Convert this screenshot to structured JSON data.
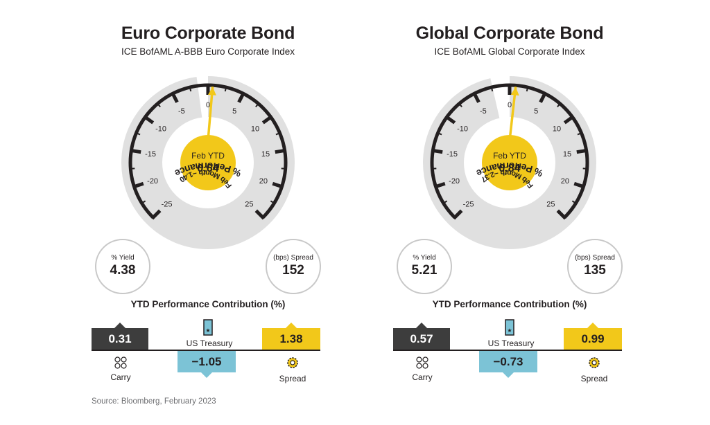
{
  "colors": {
    "dark": "#3d3d3d",
    "yellow": "#f2c81a",
    "blue": "#7cc3d6",
    "grey": "#e0e0e0"
  },
  "panels": [
    {
      "title": "Euro Corporate Bond",
      "subtitle": "ICE BofAML A-BBB Euro Corporate Index",
      "gauge_label": "% Performance",
      "center_label": "Feb YTD",
      "center_value": "0.64",
      "month_label": "Feb Month −1.40",
      "yield_label": "% Yield",
      "yield_value": "4.38",
      "spread_label": "(bps) Spread",
      "spread_value": "152",
      "contrib_title": "YTD Performance Contribution (%)",
      "carry_value": "0.31",
      "carry_label": "Carry",
      "treasury_value": "−1.05",
      "treasury_label": "US Treasury",
      "spread_contrib_value": "1.38",
      "spread_contrib_label": "Spread"
    },
    {
      "title": "Global Corporate Bond",
      "subtitle": "ICE BofAML Global Corporate Index",
      "gauge_label": "% Performance",
      "center_label": "Feb YTD",
      "center_value": "0.84",
      "month_label": "Feb Month −2.37",
      "yield_label": "% Yield",
      "yield_value": "5.21",
      "spread_label": "(bps) Spread",
      "spread_value": "135",
      "contrib_title": "YTD Performance Contribution (%)",
      "carry_value": "0.57",
      "carry_label": "Carry",
      "treasury_value": "−0.73",
      "treasury_label": "US Treasury",
      "spread_contrib_value": "0.99",
      "spread_contrib_label": "Spread"
    }
  ],
  "source": "Source: Bloomberg, February 2023",
  "chart_data": [
    {
      "type": "gauge",
      "title": "Euro Corporate Bond",
      "axis_label": "% Performance",
      "range": [
        -25,
        25
      ],
      "ticks": [
        -25,
        -20,
        -15,
        -10,
        -5,
        0,
        5,
        10,
        15,
        20,
        25
      ],
      "feb_ytd": 0.64,
      "feb_month": -1.4,
      "contribution": {
        "categories": [
          "Carry",
          "US Treasury",
          "Spread"
        ],
        "values": [
          0.31,
          -1.05,
          1.38
        ]
      }
    },
    {
      "type": "gauge",
      "title": "Global Corporate Bond",
      "axis_label": "% Performance",
      "range": [
        -25,
        25
      ],
      "ticks": [
        -25,
        -20,
        -15,
        -10,
        -5,
        0,
        5,
        10,
        15,
        20,
        25
      ],
      "feb_ytd": 0.84,
      "feb_month": -2.37,
      "contribution": {
        "categories": [
          "Carry",
          "US Treasury",
          "Spread"
        ],
        "values": [
          0.57,
          -0.73,
          0.99
        ]
      }
    }
  ]
}
